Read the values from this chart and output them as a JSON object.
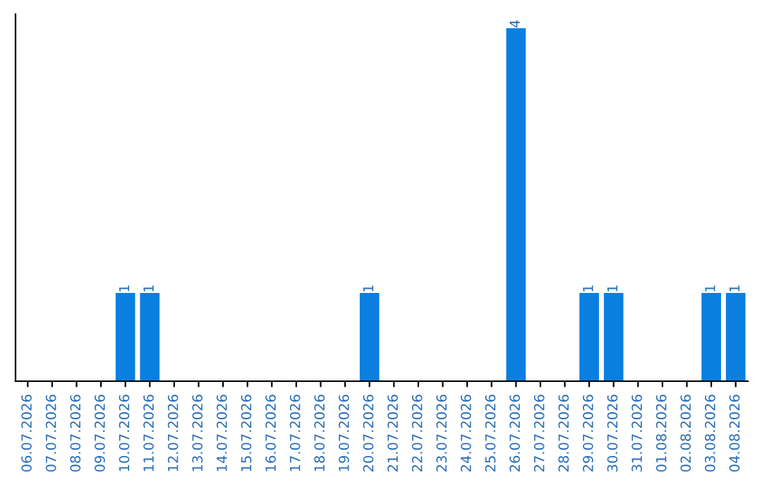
{
  "chart_data": {
    "type": "bar",
    "categories": [
      "06.07.2026",
      "07.07.2026",
      "08.07.2026",
      "09.07.2026",
      "10.07.2026",
      "11.07.2026",
      "12.07.2026",
      "13.07.2026",
      "14.07.2026",
      "15.07.2026",
      "16.07.2026",
      "17.07.2026",
      "18.07.2026",
      "19.07.2026",
      "20.07.2026",
      "21.07.2026",
      "22.07.2026",
      "23.07.2026",
      "24.07.2026",
      "25.07.2026",
      "26.07.2026",
      "27.07.2026",
      "28.07.2026",
      "29.07.2026",
      "30.07.2026",
      "31.07.2026",
      "01.08.2026",
      "02.08.2026",
      "03.08.2026",
      "04.08.2026"
    ],
    "values": [
      0,
      0,
      0,
      0,
      1,
      1,
      0,
      0,
      0,
      0,
      0,
      0,
      0,
      0,
      1,
      0,
      0,
      0,
      0,
      0,
      4,
      0,
      0,
      1,
      1,
      0,
      0,
      0,
      1,
      1
    ],
    "color": "#0a7fe0",
    "value_labels": [
      null,
      null,
      null,
      null,
      "1",
      "1",
      null,
      null,
      null,
      null,
      null,
      null,
      null,
      null,
      "1",
      null,
      null,
      null,
      null,
      null,
      "4",
      null,
      null,
      "1",
      "1",
      null,
      null,
      null,
      "1",
      "1"
    ],
    "tick_labels": "x",
    "grid": false,
    "legend": false
  }
}
